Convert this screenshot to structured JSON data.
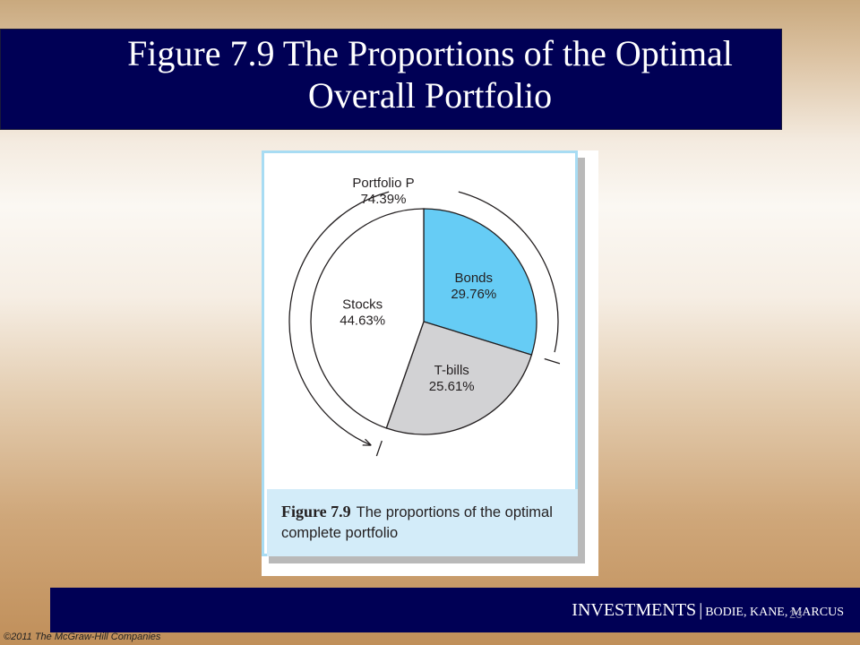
{
  "slide": {
    "title": "Figure 7.9 The Proportions of the Optimal\nOverall Portfolio",
    "page_number": "23",
    "copyright": "©2011 The McGraw-Hill Companies"
  },
  "footer": {
    "main": "INVESTMENTS",
    "separator": "|",
    "authors": "BODIE, KANE, MARCUS"
  },
  "figure": {
    "caption_label": "Figure 7.9",
    "caption_text": "The proportions of the optimal complete portfolio",
    "portfolio_label": "Portfolio P",
    "portfolio_value": "74.39%"
  },
  "colors": {
    "title_bar": "#000055",
    "bonds": "#66ccf5",
    "tbills": "#d2d2d4",
    "stocks": "#ffffff",
    "caption_bg": "#d3ecf9"
  },
  "chart_data": {
    "type": "pie",
    "start_angle_deg": 0,
    "slices": [
      {
        "label": "Bonds",
        "value": 29.76,
        "value_text": "29.76%",
        "color": "#66ccf5"
      },
      {
        "label": "T-bills",
        "value": 25.61,
        "value_text": "25.61%",
        "color": "#d2d2d4"
      },
      {
        "label": "Stocks",
        "value": 44.63,
        "value_text": "44.63%",
        "color": "#ffffff"
      }
    ]
  }
}
